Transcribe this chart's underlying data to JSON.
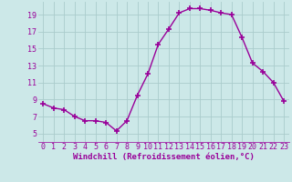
{
  "x": [
    0,
    1,
    2,
    3,
    4,
    5,
    6,
    7,
    8,
    9,
    10,
    11,
    12,
    13,
    14,
    15,
    16,
    17,
    18,
    19,
    20,
    21,
    22,
    23
  ],
  "y": [
    8.5,
    8.0,
    7.8,
    7.0,
    6.5,
    6.5,
    6.3,
    5.3,
    6.5,
    9.5,
    12.0,
    15.5,
    17.3,
    19.2,
    19.7,
    19.7,
    19.5,
    19.2,
    19.0,
    16.3,
    13.3,
    12.3,
    11.0,
    8.8
  ],
  "line_color": "#990099",
  "marker": "+",
  "marker_size": 4,
  "marker_linewidth": 1.2,
  "line_width": 1.0,
  "xlabel": "Windchill (Refroidissement éolien,°C)",
  "xlabel_fontsize": 6.5,
  "xlim_min": -0.5,
  "xlim_max": 23.5,
  "ylim_min": 4.0,
  "ylim_max": 20.5,
  "yticks": [
    5,
    7,
    9,
    11,
    13,
    15,
    17,
    19
  ],
  "xticks": [
    0,
    1,
    2,
    3,
    4,
    5,
    6,
    7,
    8,
    9,
    10,
    11,
    12,
    13,
    14,
    15,
    16,
    17,
    18,
    19,
    20,
    21,
    22,
    23
  ],
  "bg_color": "#cce8e8",
  "grid_color": "#aacccc",
  "tick_fontsize": 6,
  "tick_color": "#990099",
  "label_color": "#990099"
}
